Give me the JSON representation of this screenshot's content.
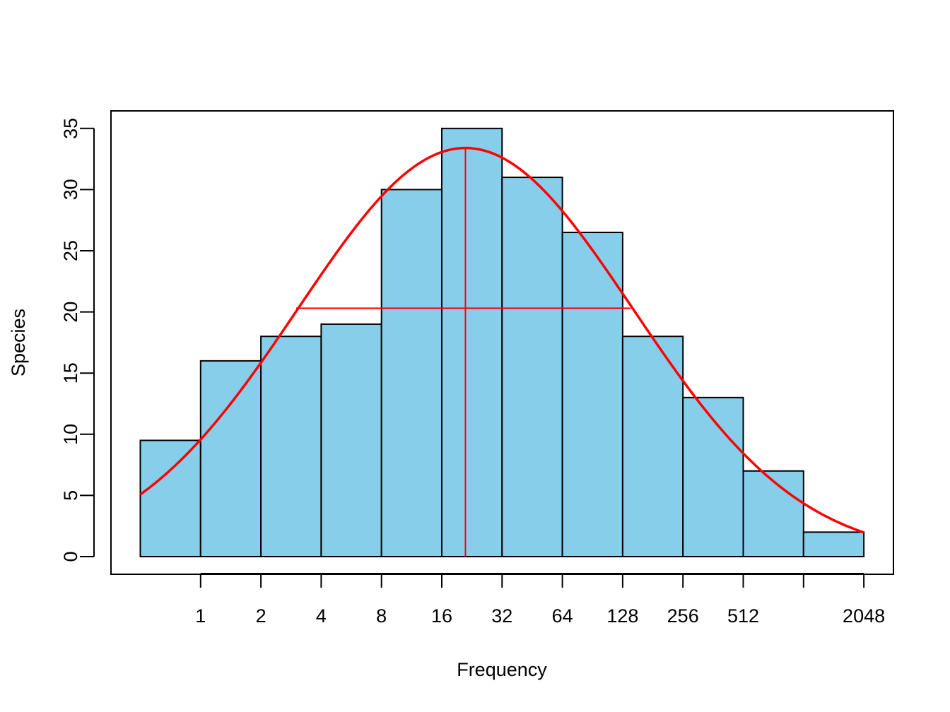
{
  "chart_data": {
    "type": "bar",
    "title": "",
    "xlabel": "Frequency",
    "ylabel": "Species",
    "bins": [
      "0.5",
      "1",
      "2",
      "4",
      "8",
      "16",
      "32",
      "64",
      "128",
      "256",
      "512",
      "1024"
    ],
    "values": [
      9.5,
      16,
      18,
      19,
      30,
      35,
      31,
      26.5,
      18,
      13,
      7,
      2
    ],
    "x_tick_labels": [
      "1",
      "2",
      "4",
      "8",
      "16",
      "32",
      "64",
      "128",
      "256",
      "512",
      "",
      "2048"
    ],
    "y_ticks": [
      0,
      5,
      10,
      15,
      20,
      25,
      30,
      35
    ],
    "ylim": [
      0,
      35
    ],
    "x_scale": "log2",
    "grid": false,
    "fit_curve": {
      "type": "normal",
      "peak_x": 21,
      "peak_y": 33.4,
      "span_start": 3,
      "span_end": 140,
      "span_height": 20.3
    },
    "colors": {
      "bar_fill": "#87CEEB",
      "bar_stroke": "#000000",
      "curve": "#FF0000"
    }
  }
}
